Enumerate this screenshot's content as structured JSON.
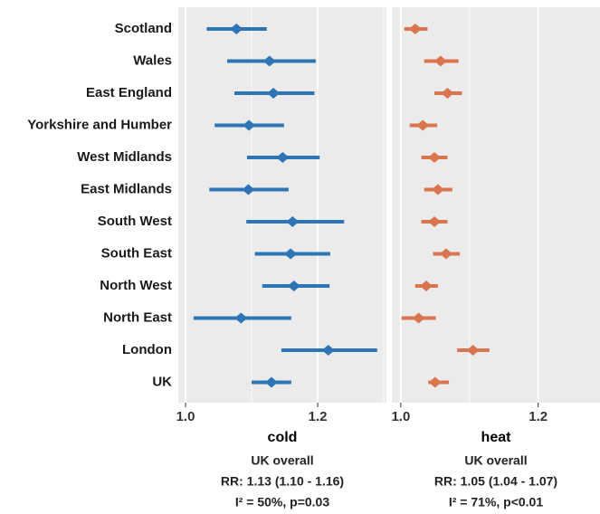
{
  "chart_data": [
    {
      "type": "forest",
      "xlabel": "cold",
      "categories": [
        "Scotland",
        "Wales",
        "East England",
        "Yorkshire and Humber",
        "West Midlands",
        "East Midlands",
        "South West",
        "South East",
        "North West",
        "North East",
        "London",
        "UK"
      ],
      "series": [
        {
          "color": "#2e75b6",
          "values": [
            1.077,
            1.127,
            1.133,
            1.096,
            1.147,
            1.095,
            1.162,
            1.159,
            1.164,
            1.084,
            1.216,
            1.13
          ],
          "lower": [
            1.032,
            1.063,
            1.074,
            1.044,
            1.093,
            1.036,
            1.092,
            1.105,
            1.116,
            1.012,
            1.145,
            1.1
          ],
          "upper": [
            1.123,
            1.197,
            1.195,
            1.149,
            1.203,
            1.156,
            1.24,
            1.219,
            1.218,
            1.16,
            1.29,
            1.16
          ]
        }
      ],
      "xlim": [
        0.989,
        1.304
      ],
      "xticks": [
        {
          "value": 1,
          "label": "1.0"
        },
        {
          "value": 1.2,
          "label": "1.2"
        }
      ],
      "minor_xticks": [
        1.1,
        1.3
      ],
      "grid": true,
      "annotations": [
        "UK overall",
        "RR: 1.13 (1.10 - 1.16)",
        "I² = 50%, p=0.03"
      ]
    },
    {
      "type": "forest",
      "xlabel": "heat",
      "series": [
        {
          "color": "#d9764f",
          "values": [
            1.021,
            1.058,
            1.068,
            1.032,
            1.049,
            1.054,
            1.049,
            1.066,
            1.037,
            1.026,
            1.105,
            1.05
          ],
          "lower": [
            1.005,
            1.034,
            1.049,
            1.013,
            1.03,
            1.034,
            1.03,
            1.047,
            1.021,
            1.001,
            1.082,
            1.04
          ],
          "upper": [
            1.039,
            1.084,
            1.089,
            1.053,
            1.068,
            1.075,
            1.068,
            1.086,
            1.054,
            1.051,
            1.129,
            1.07
          ]
        }
      ],
      "xlim": [
        0.987,
        1.29
      ],
      "xticks": [
        {
          "value": 1,
          "label": "1.0"
        },
        {
          "value": 1.2,
          "label": "1.2"
        }
      ],
      "minor_xticks": [
        1.1
      ],
      "grid": true,
      "annotations": [
        "UK overall",
        "RR: 1.05 (1.04 - 1.07)",
        "I² = 71%, p<0.01"
      ]
    }
  ]
}
